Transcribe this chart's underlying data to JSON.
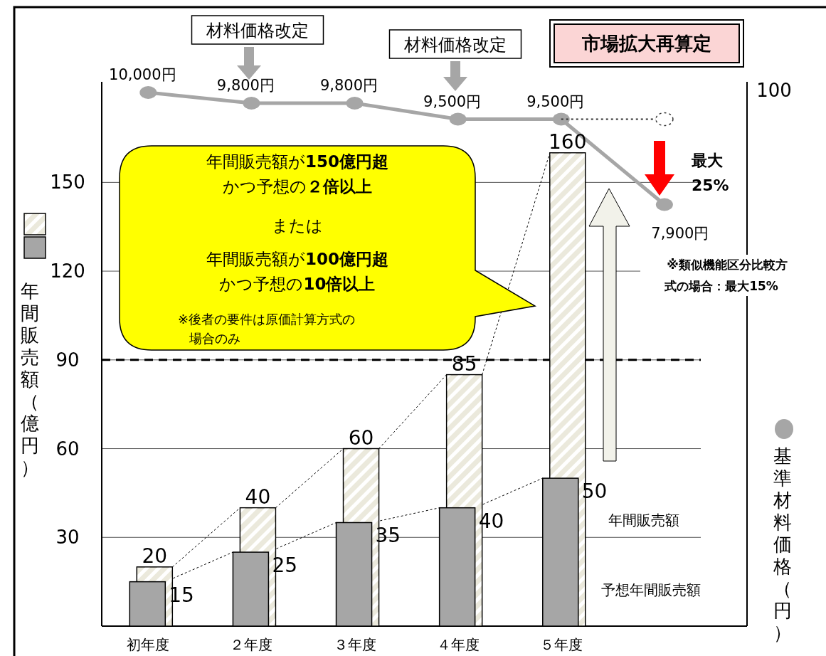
{
  "chart_data": {
    "type": "bar",
    "categories": [
      "初年度",
      "２年度",
      "３年度",
      "４年度",
      "５年度",
      null
    ],
    "series": [
      {
        "name": "年間販売額",
        "color": "#ebe9dc",
        "values": [
          20,
          40,
          60,
          85,
          160,
          null
        ],
        "value_labels": [
          "20",
          "40",
          "60",
          "85",
          "160",
          null
        ]
      },
      {
        "name": "予想年間販売額",
        "color": "#a6a6a6",
        "values": [
          15,
          25,
          35,
          40,
          50,
          null
        ],
        "value_labels": [
          "15",
          "25",
          "35",
          "40",
          "50",
          null
        ]
      },
      {
        "type": "line",
        "axis": "y2",
        "color": "#a6a6a6",
        "marker": "circle",
        "values": [
          10000,
          9800,
          9800,
          9500,
          9500,
          7900
        ],
        "value_labels": [
          "10,000円",
          "9,800円",
          "9,800円",
          "9,500円",
          "9,500円",
          "7,900円"
        ]
      },
      {
        "type": "line",
        "axis": "y2",
        "color": "#333333",
        "line_style": "dotted",
        "marker": "circle",
        "values": [
          null,
          null,
          null,
          null,
          9500,
          9500
        ]
      }
    ],
    "ylabel": "年間販売額（億円）",
    "y2label": "基準材料価格（円）",
    "ylim": [
      0,
      184
    ],
    "yticks": [
      30,
      60,
      90,
      120,
      150
    ],
    "y2lim": [
      0,
      10200
    ],
    "ref_lines": [
      {
        "axis": "y",
        "value": 90,
        "color": "#000000",
        "line_style": "dashed"
      }
    ],
    "grid": "y",
    "legend": "bottom right",
    "annotations": [
      "材料価格改定",
      "材料価格改定",
      "市場拡大再算定",
      "年間販売額が**150億円超**",
      "かつ予想の**２倍以上**",
      "または",
      "年間販売額が**100億円超**",
      "かつ予想の**10倍以上**",
      "※後者の要件は原価計算方式の場合のみ",
      "最大 25%",
      "※類似機能区分比較方式の場合：最大15%",
      "100"
    ]
  }
}
